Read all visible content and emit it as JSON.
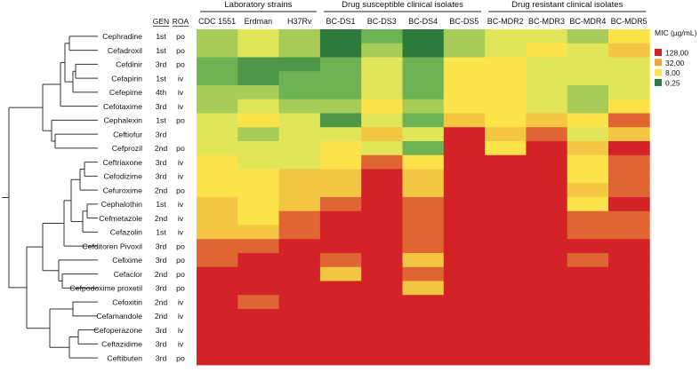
{
  "chart_data": {
    "type": "heatmap",
    "title": "",
    "group_headers": [
      "Laboratory strains",
      "Drug susceptible clinical isolates",
      "Drug resistant clinical isolates"
    ],
    "group_spans": [
      [
        0,
        2
      ],
      [
        3,
        6
      ],
      [
        7,
        10
      ]
    ],
    "columns": [
      "CDC 1551",
      "Erdman",
      "H37Rv",
      "BC-DS1",
      "BC-DS3",
      "BC-DS4",
      "BC-DS5",
      "BC-MDR2",
      "BC-MDR3",
      "BC-MDR4",
      "BC-MDR5"
    ],
    "row_meta_headers": {
      "gen": "GEN",
      "roa": "ROA"
    },
    "rows": [
      {
        "drug": "Cephradine",
        "gen": "1st",
        "roa": "po"
      },
      {
        "drug": "Cefadroxil",
        "gen": "1st",
        "roa": "po"
      },
      {
        "drug": "Cefdinir",
        "gen": "3rd",
        "roa": "po"
      },
      {
        "drug": "Cefapirin",
        "gen": "1st",
        "roa": "iv"
      },
      {
        "drug": "Cefepime",
        "gen": "4th",
        "roa": "iv"
      },
      {
        "drug": "Cefotaxime",
        "gen": "3rd",
        "roa": "iv"
      },
      {
        "drug": "Cephalexin",
        "gen": "1st",
        "roa": "po"
      },
      {
        "drug": "Ceftiofur",
        "gen": "3rd",
        "roa": ""
      },
      {
        "drug": "Cefprozil",
        "gen": "2nd",
        "roa": "po"
      },
      {
        "drug": "Ceftriaxone",
        "gen": "3rd",
        "roa": "iv"
      },
      {
        "drug": "Cefodizime",
        "gen": "3rd",
        "roa": "iv"
      },
      {
        "drug": "Cefuroxime",
        "gen": "2nd",
        "roa": "po"
      },
      {
        "drug": "Cephalothin",
        "gen": "1st",
        "roa": "iv"
      },
      {
        "drug": "Cefmetazole",
        "gen": "2nd",
        "roa": "iv"
      },
      {
        "drug": "Cefazolin",
        "gen": "1st",
        "roa": "iv"
      },
      {
        "drug": "Cefditoren Pivoxil",
        "gen": "3rd",
        "roa": "po"
      },
      {
        "drug": "Cefixime",
        "gen": "3rd",
        "roa": "po"
      },
      {
        "drug": "Cefaclor",
        "gen": "2nd",
        "roa": "po"
      },
      {
        "drug": "Cefpodoxime proxetil",
        "gen": "3rd",
        "roa": "po"
      },
      {
        "drug": "Cefoxitin",
        "gen": "2nd",
        "roa": "iv"
      },
      {
        "drug": "Cefamandole",
        "gen": "2nd",
        "roa": "iv"
      },
      {
        "drug": "Cefoperazone",
        "gen": "3rd",
        "roa": "iv"
      },
      {
        "drug": "Ceftazidime",
        "gen": "3rd",
        "roa": "iv"
      },
      {
        "drug": "Ceftibuten",
        "gen": "3rd",
        "roa": "po"
      }
    ],
    "values": [
      [
        2,
        4,
        2,
        0.25,
        1,
        0.25,
        2,
        4,
        4,
        2,
        8
      ],
      [
        2,
        4,
        2,
        0.25,
        2,
        0.25,
        2,
        4,
        8,
        4,
        16
      ],
      [
        1,
        0.5,
        0.5,
        1,
        4,
        1,
        8,
        8,
        4,
        4,
        4
      ],
      [
        1,
        0.5,
        1,
        1,
        4,
        1,
        8,
        8,
        4,
        4,
        4
      ],
      [
        2,
        2,
        1,
        1,
        4,
        1,
        8,
        8,
        4,
        2,
        4
      ],
      [
        2,
        4,
        2,
        2,
        8,
        2,
        8,
        8,
        4,
        2,
        8
      ],
      [
        4,
        8,
        4,
        0.5,
        4,
        1,
        16,
        8,
        16,
        8,
        64
      ],
      [
        4,
        2,
        4,
        4,
        16,
        4,
        128,
        16,
        64,
        4,
        16
      ],
      [
        4,
        4,
        4,
        8,
        4,
        1,
        128,
        8,
        128,
        16,
        128
      ],
      [
        8,
        4,
        4,
        8,
        64,
        8,
        128,
        128,
        128,
        8,
        64
      ],
      [
        8,
        8,
        16,
        16,
        128,
        16,
        128,
        128,
        128,
        8,
        64
      ],
      [
        8,
        8,
        16,
        16,
        128,
        16,
        128,
        128,
        128,
        16,
        64
      ],
      [
        16,
        8,
        16,
        64,
        128,
        64,
        128,
        128,
        128,
        8,
        128
      ],
      [
        16,
        8,
        64,
        128,
        128,
        64,
        128,
        128,
        128,
        64,
        64
      ],
      [
        16,
        16,
        64,
        128,
        128,
        64,
        128,
        128,
        128,
        64,
        64
      ],
      [
        64,
        64,
        128,
        128,
        128,
        64,
        128,
        128,
        128,
        128,
        128
      ],
      [
        64,
        128,
        128,
        64,
        128,
        16,
        128,
        128,
        128,
        64,
        128
      ],
      [
        128,
        128,
        128,
        16,
        128,
        64,
        128,
        128,
        128,
        128,
        128
      ],
      [
        128,
        128,
        128,
        128,
        128,
        16,
        128,
        128,
        128,
        128,
        128
      ],
      [
        128,
        64,
        128,
        128,
        128,
        128,
        128,
        128,
        128,
        128,
        128
      ],
      [
        128,
        128,
        128,
        128,
        128,
        128,
        128,
        128,
        128,
        128,
        128
      ],
      [
        128,
        128,
        128,
        128,
        128,
        128,
        128,
        128,
        128,
        128,
        128
      ],
      [
        128,
        128,
        128,
        128,
        128,
        128,
        128,
        128,
        128,
        128,
        128
      ],
      [
        128,
        128,
        128,
        128,
        128,
        128,
        128,
        128,
        128,
        128,
        128
      ]
    ],
    "colorscale": [
      {
        "value": 0.25,
        "color": "#2e7a3b"
      },
      {
        "value": 1,
        "color": "#6db355"
      },
      {
        "value": 4,
        "color": "#e0e55a"
      },
      {
        "value": 8,
        "color": "#fde34a"
      },
      {
        "value": 32,
        "color": "#e9a83c"
      },
      {
        "value": 128,
        "color": "#d42229"
      }
    ],
    "legend": {
      "title": "MIC (µg/mL)",
      "position": "right",
      "entries": [
        {
          "label": "128,00",
          "color": "#d42229"
        },
        {
          "label": "32,00",
          "color": "#e9a83c"
        },
        {
          "label": "8,00",
          "color": "#fde34a"
        },
        {
          "label": "0,25",
          "color": "#2e7a3b"
        }
      ]
    },
    "dendrogram": "left"
  }
}
